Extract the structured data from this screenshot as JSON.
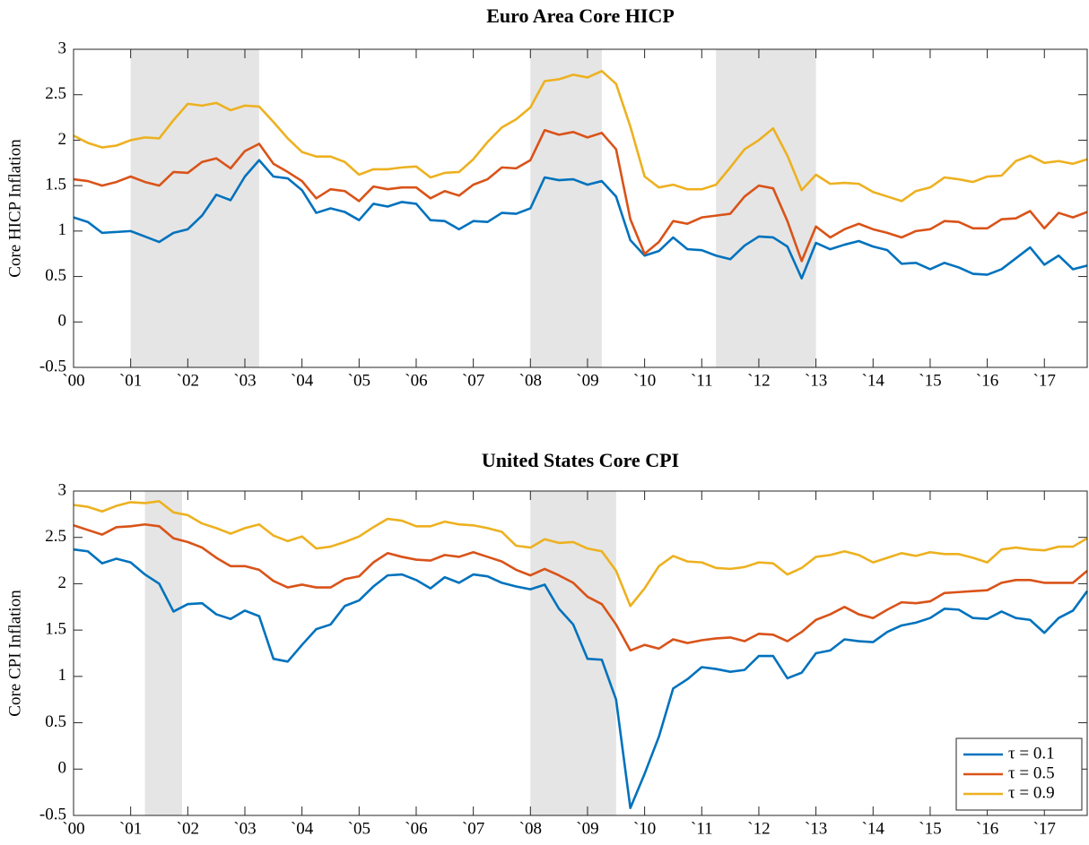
{
  "chart_data": [
    {
      "type": "line",
      "title": "Euro Area Core HICP",
      "ylabel": "Core HICP Inflation",
      "legend": false,
      "x": [
        2000,
        2000.25,
        2000.5,
        2000.75,
        2001,
        2001.25,
        2001.5,
        2001.75,
        2002,
        2002.25,
        2002.5,
        2002.75,
        2003,
        2003.25,
        2003.5,
        2003.75,
        2004,
        2004.25,
        2004.5,
        2004.75,
        2005,
        2005.25,
        2005.5,
        2005.75,
        2006,
        2006.25,
        2006.5,
        2006.75,
        2007,
        2007.25,
        2007.5,
        2007.75,
        2008,
        2008.25,
        2008.5,
        2008.75,
        2009,
        2009.25,
        2009.5,
        2009.75,
        2010,
        2010.25,
        2010.5,
        2010.75,
        2011,
        2011.25,
        2011.5,
        2011.75,
        2012,
        2012.25,
        2012.5,
        2012.75,
        2013,
        2013.25,
        2013.5,
        2013.75,
        2014,
        2014.25,
        2014.5,
        2014.75,
        2015,
        2015.25,
        2015.5,
        2015.75,
        2016,
        2016.25,
        2016.5,
        2016.75,
        2017,
        2017.25,
        2017.5,
        2017.75
      ],
      "series": [
        {
          "name": "τ = 0.1",
          "color": "#0072BD",
          "values": [
            1.15,
            1.1,
            0.98,
            0.99,
            1.0,
            0.94,
            0.88,
            0.98,
            1.02,
            1.17,
            1.4,
            1.34,
            1.6,
            1.78,
            1.6,
            1.58,
            1.45,
            1.2,
            1.25,
            1.21,
            1.12,
            1.3,
            1.27,
            1.32,
            1.3,
            1.12,
            1.11,
            1.02,
            1.11,
            1.1,
            1.2,
            1.19,
            1.25,
            1.59,
            1.56,
            1.57,
            1.51,
            1.55,
            1.38,
            0.9,
            0.73,
            0.78,
            0.93,
            0.8,
            0.79,
            0.73,
            0.69,
            0.84,
            0.94,
            0.93,
            0.83,
            0.48,
            0.87,
            0.8,
            0.85,
            0.89,
            0.83,
            0.79,
            0.64,
            0.65,
            0.58,
            0.65,
            0.6,
            0.53,
            0.52,
            0.58,
            0.7,
            0.82,
            0.63,
            0.73,
            0.58,
            0.62
          ]
        },
        {
          "name": "τ = 0.5",
          "color": "#D95319",
          "values": [
            1.57,
            1.55,
            1.5,
            1.54,
            1.6,
            1.54,
            1.5,
            1.65,
            1.64,
            1.76,
            1.8,
            1.69,
            1.88,
            1.96,
            1.74,
            1.65,
            1.55,
            1.36,
            1.46,
            1.44,
            1.33,
            1.49,
            1.46,
            1.48,
            1.48,
            1.36,
            1.44,
            1.39,
            1.51,
            1.57,
            1.7,
            1.69,
            1.78,
            2.11,
            2.06,
            2.09,
            2.03,
            2.08,
            1.9,
            1.13,
            0.75,
            0.88,
            1.11,
            1.08,
            1.15,
            1.17,
            1.19,
            1.38,
            1.5,
            1.47,
            1.11,
            0.67,
            1.05,
            0.93,
            1.02,
            1.08,
            1.02,
            0.98,
            0.93,
            1.0,
            1.02,
            1.11,
            1.1,
            1.03,
            1.03,
            1.13,
            1.14,
            1.22,
            1.03,
            1.2,
            1.15,
            1.21
          ]
        },
        {
          "name": "τ = 0.9",
          "color": "#EDB120",
          "values": [
            2.05,
            1.97,
            1.92,
            1.94,
            2.0,
            2.03,
            2.02,
            2.22,
            2.4,
            2.38,
            2.41,
            2.33,
            2.38,
            2.37,
            2.2,
            2.02,
            1.87,
            1.82,
            1.82,
            1.76,
            1.62,
            1.68,
            1.68,
            1.7,
            1.71,
            1.59,
            1.64,
            1.65,
            1.79,
            1.98,
            2.14,
            2.23,
            2.36,
            2.65,
            2.67,
            2.72,
            2.69,
            2.76,
            2.62,
            2.15,
            1.6,
            1.48,
            1.51,
            1.46,
            1.46,
            1.51,
            1.7,
            1.9,
            2.0,
            2.13,
            1.83,
            1.45,
            1.62,
            1.52,
            1.53,
            1.52,
            1.43,
            1.38,
            1.33,
            1.44,
            1.48,
            1.59,
            1.57,
            1.54,
            1.6,
            1.61,
            1.77,
            1.83,
            1.75,
            1.77,
            1.74,
            1.79
          ]
        }
      ],
      "shaded": [
        [
          2001,
          2003.25
        ],
        [
          2008,
          2009.25
        ],
        [
          2011.25,
          2013
        ]
      ],
      "xlim": [
        2000,
        2017.75
      ],
      "xticks": [
        {
          "value": 2000,
          "label": "`00"
        },
        {
          "value": 2001,
          "label": "`01"
        },
        {
          "value": 2002,
          "label": "`02"
        },
        {
          "value": 2003,
          "label": "`03"
        },
        {
          "value": 2004,
          "label": "`04"
        },
        {
          "value": 2005,
          "label": "`05"
        },
        {
          "value": 2006,
          "label": "`06"
        },
        {
          "value": 2007,
          "label": "`07"
        },
        {
          "value": 2008,
          "label": "`08"
        },
        {
          "value": 2009,
          "label": "`09"
        },
        {
          "value": 2010,
          "label": "`10"
        },
        {
          "value": 2011,
          "label": "`11"
        },
        {
          "value": 2012,
          "label": "`12"
        },
        {
          "value": 2013,
          "label": "`13"
        },
        {
          "value": 2014,
          "label": "`14"
        },
        {
          "value": 2015,
          "label": "`15"
        },
        {
          "value": 2016,
          "label": "`16"
        },
        {
          "value": 2017,
          "label": "`17"
        }
      ],
      "ylim": [
        -0.5,
        3
      ],
      "yticks": [
        -0.5,
        0,
        0.5,
        1,
        1.5,
        2,
        2.5,
        3
      ]
    },
    {
      "type": "line",
      "title": "United States Core CPI",
      "ylabel": "Core CPI Inflation",
      "legend": "lower right",
      "x": [
        2000,
        2000.25,
        2000.5,
        2000.75,
        2001,
        2001.25,
        2001.5,
        2001.75,
        2002,
        2002.25,
        2002.5,
        2002.75,
        2003,
        2003.25,
        2003.5,
        2003.75,
        2004,
        2004.25,
        2004.5,
        2004.75,
        2005,
        2005.25,
        2005.5,
        2005.75,
        2006,
        2006.25,
        2006.5,
        2006.75,
        2007,
        2007.25,
        2007.5,
        2007.75,
        2008,
        2008.25,
        2008.5,
        2008.75,
        2009,
        2009.25,
        2009.5,
        2009.75,
        2010,
        2010.25,
        2010.5,
        2010.75,
        2011,
        2011.25,
        2011.5,
        2011.75,
        2012,
        2012.25,
        2012.5,
        2012.75,
        2013,
        2013.25,
        2013.5,
        2013.75,
        2014,
        2014.25,
        2014.5,
        2014.75,
        2015,
        2015.25,
        2015.5,
        2015.75,
        2016,
        2016.25,
        2016.5,
        2016.75,
        2017,
        2017.25,
        2017.5,
        2017.75
      ],
      "series": [
        {
          "name": "τ = 0.1",
          "color": "#0072BD",
          "values": [
            2.37,
            2.35,
            2.22,
            2.27,
            2.23,
            2.1,
            2.0,
            1.7,
            1.78,
            1.79,
            1.67,
            1.62,
            1.71,
            1.65,
            1.19,
            1.16,
            1.34,
            1.51,
            1.56,
            1.76,
            1.82,
            1.97,
            2.09,
            2.1,
            2.04,
            1.95,
            2.07,
            2.01,
            2.1,
            2.08,
            2.01,
            1.97,
            1.94,
            1.99,
            1.73,
            1.56,
            1.19,
            1.18,
            0.75,
            -0.42,
            -0.05,
            0.35,
            0.87,
            0.97,
            1.1,
            1.08,
            1.05,
            1.07,
            1.22,
            1.22,
            0.98,
            1.04,
            1.25,
            1.28,
            1.4,
            1.38,
            1.37,
            1.48,
            1.55,
            1.58,
            1.63,
            1.73,
            1.72,
            1.63,
            1.62,
            1.7,
            1.63,
            1.61,
            1.47,
            1.63,
            1.71,
            1.92
          ]
        },
        {
          "name": "τ = 0.5",
          "color": "#D95319",
          "values": [
            2.63,
            2.58,
            2.53,
            2.61,
            2.62,
            2.64,
            2.62,
            2.49,
            2.45,
            2.39,
            2.28,
            2.19,
            2.19,
            2.15,
            2.03,
            1.96,
            1.99,
            1.96,
            1.96,
            2.05,
            2.08,
            2.23,
            2.33,
            2.29,
            2.26,
            2.25,
            2.31,
            2.29,
            2.34,
            2.29,
            2.24,
            2.15,
            2.09,
            2.16,
            2.09,
            2.01,
            1.86,
            1.78,
            1.56,
            1.28,
            1.34,
            1.3,
            1.4,
            1.36,
            1.39,
            1.41,
            1.42,
            1.38,
            1.46,
            1.45,
            1.38,
            1.48,
            1.61,
            1.67,
            1.75,
            1.67,
            1.63,
            1.72,
            1.8,
            1.79,
            1.81,
            1.9,
            1.91,
            1.92,
            1.93,
            2.01,
            2.04,
            2.04,
            2.01,
            2.01,
            2.01,
            2.14
          ]
        },
        {
          "name": "τ = 0.9",
          "color": "#EDB120",
          "values": [
            2.85,
            2.83,
            2.78,
            2.84,
            2.88,
            2.87,
            2.89,
            2.77,
            2.74,
            2.65,
            2.6,
            2.54,
            2.6,
            2.64,
            2.52,
            2.46,
            2.51,
            2.38,
            2.4,
            2.45,
            2.51,
            2.61,
            2.7,
            2.68,
            2.62,
            2.62,
            2.67,
            2.64,
            2.63,
            2.6,
            2.56,
            2.41,
            2.39,
            2.48,
            2.44,
            2.45,
            2.38,
            2.35,
            2.14,
            1.76,
            1.95,
            2.19,
            2.3,
            2.24,
            2.23,
            2.17,
            2.16,
            2.18,
            2.23,
            2.22,
            2.1,
            2.17,
            2.29,
            2.31,
            2.35,
            2.31,
            2.23,
            2.28,
            2.33,
            2.3,
            2.34,
            2.32,
            2.32,
            2.28,
            2.23,
            2.37,
            2.39,
            2.37,
            2.36,
            2.4,
            2.4,
            2.49
          ]
        }
      ],
      "shaded": [
        [
          2001.25,
          2001.9
        ],
        [
          2008,
          2009.5
        ]
      ],
      "xlim": [
        2000,
        2017.75
      ],
      "xticks": [
        {
          "value": 2000,
          "label": "`00"
        },
        {
          "value": 2001,
          "label": "`01"
        },
        {
          "value": 2002,
          "label": "`02"
        },
        {
          "value": 2003,
          "label": "`03"
        },
        {
          "value": 2004,
          "label": "`04"
        },
        {
          "value": 2005,
          "label": "`05"
        },
        {
          "value": 2006,
          "label": "`06"
        },
        {
          "value": 2007,
          "label": "`07"
        },
        {
          "value": 2008,
          "label": "`08"
        },
        {
          "value": 2009,
          "label": "`09"
        },
        {
          "value": 2010,
          "label": "`10"
        },
        {
          "value": 2011,
          "label": "`11"
        },
        {
          "value": 2012,
          "label": "`12"
        },
        {
          "value": 2013,
          "label": "`13"
        },
        {
          "value": 2014,
          "label": "`14"
        },
        {
          "value": 2015,
          "label": "`15"
        },
        {
          "value": 2016,
          "label": "`16"
        },
        {
          "value": 2017,
          "label": "`17"
        }
      ],
      "ylim": [
        -0.5,
        3
      ],
      "yticks": [
        -0.5,
        0,
        0.5,
        1,
        1.5,
        2,
        2.5,
        3
      ]
    }
  ]
}
